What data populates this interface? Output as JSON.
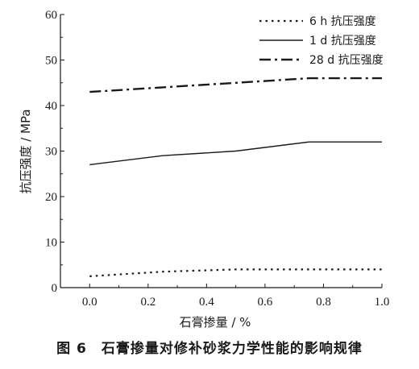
{
  "caption": "图 6　石膏掺量对修补砂浆力学性能的影响规律",
  "chart_data": {
    "type": "line",
    "xlabel": "石膏掺量 / %",
    "ylabel": "抗压强度 / MPa",
    "xlim": [
      -0.1,
      1.0
    ],
    "ylim": [
      0,
      60
    ],
    "xticks": [
      0.0,
      0.2,
      0.4,
      0.6,
      0.8,
      1.0
    ],
    "yticks": [
      0,
      10,
      20,
      30,
      40,
      50,
      60
    ],
    "x": [
      0.0,
      0.25,
      0.5,
      0.75,
      1.0
    ],
    "grid": false,
    "legend_position": "top-right",
    "series": [
      {
        "name": "6 h 抗压强度",
        "values": [
          2.5,
          3.5,
          4.0,
          4.0,
          4.0
        ],
        "style": "dotted"
      },
      {
        "name": "1 d 抗压强度",
        "values": [
          27.0,
          29.0,
          30.0,
          32.0,
          32.0
        ],
        "style": "solid"
      },
      {
        "name": "28 d 抗压强度",
        "values": [
          43.0,
          44.0,
          45.0,
          46.0,
          46.0
        ],
        "style": "dashdot"
      }
    ]
  }
}
